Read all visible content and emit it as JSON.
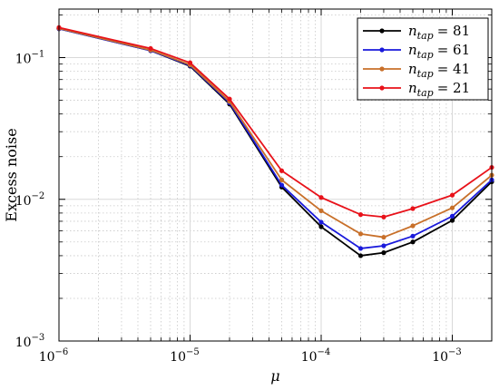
{
  "chart_data": {
    "type": "line",
    "xscale": "log",
    "yscale": "log",
    "xlabel": "μ",
    "ylabel": "Excess noise",
    "xlim": [
      1e-06,
      0.002
    ],
    "ylim": [
      0.001,
      0.22
    ],
    "grid": true,
    "legend_position": "top-right",
    "x": [
      1e-06,
      5e-06,
      1e-05,
      2e-05,
      5e-05,
      0.0001,
      0.0002,
      0.0003,
      0.0005,
      0.001,
      0.002
    ],
    "series": [
      {
        "name": "n_tap = 81",
        "label_base": "n",
        "label_sub": "tap",
        "label_value": "= 81",
        "color": "#000000",
        "values": [
          0.16,
          0.112,
          0.087,
          0.047,
          0.0122,
          0.0064,
          0.004,
          0.0042,
          0.005,
          0.0071,
          0.0133
        ]
      },
      {
        "name": "n_tap = 61",
        "label_base": "n",
        "label_sub": "tap",
        "label_value": "= 61",
        "color": "#1a1adb",
        "values": [
          0.16,
          0.112,
          0.088,
          0.048,
          0.0126,
          0.0069,
          0.0045,
          0.0047,
          0.0055,
          0.0076,
          0.0137
        ]
      },
      {
        "name": "n_tap = 41",
        "label_base": "n",
        "label_sub": "tap",
        "label_value": "= 41",
        "color": "#c8702a",
        "values": [
          0.161,
          0.113,
          0.089,
          0.049,
          0.0137,
          0.0083,
          0.0057,
          0.0054,
          0.0065,
          0.0087,
          0.0148
        ]
      },
      {
        "name": "n_tap = 21",
        "label_base": "n",
        "label_sub": "tap",
        "label_value": "= 21",
        "color": "#e8121a",
        "values": [
          0.163,
          0.116,
          0.092,
          0.051,
          0.0159,
          0.0103,
          0.0078,
          0.0075,
          0.0086,
          0.0107,
          0.0168
        ]
      }
    ],
    "xticks": [
      {
        "value": 1e-06,
        "base": "10",
        "exp": "−6"
      },
      {
        "value": 1e-05,
        "base": "10",
        "exp": "−5"
      },
      {
        "value": 0.0001,
        "base": "10",
        "exp": "−4"
      },
      {
        "value": 0.001,
        "base": "10",
        "exp": "−3"
      }
    ],
    "yticks": [
      {
        "value": 0.001,
        "base": "10",
        "exp": "−3"
      },
      {
        "value": 0.01,
        "base": "10",
        "exp": "−2"
      },
      {
        "value": 0.1,
        "base": "10",
        "exp": "−1"
      }
    ]
  }
}
